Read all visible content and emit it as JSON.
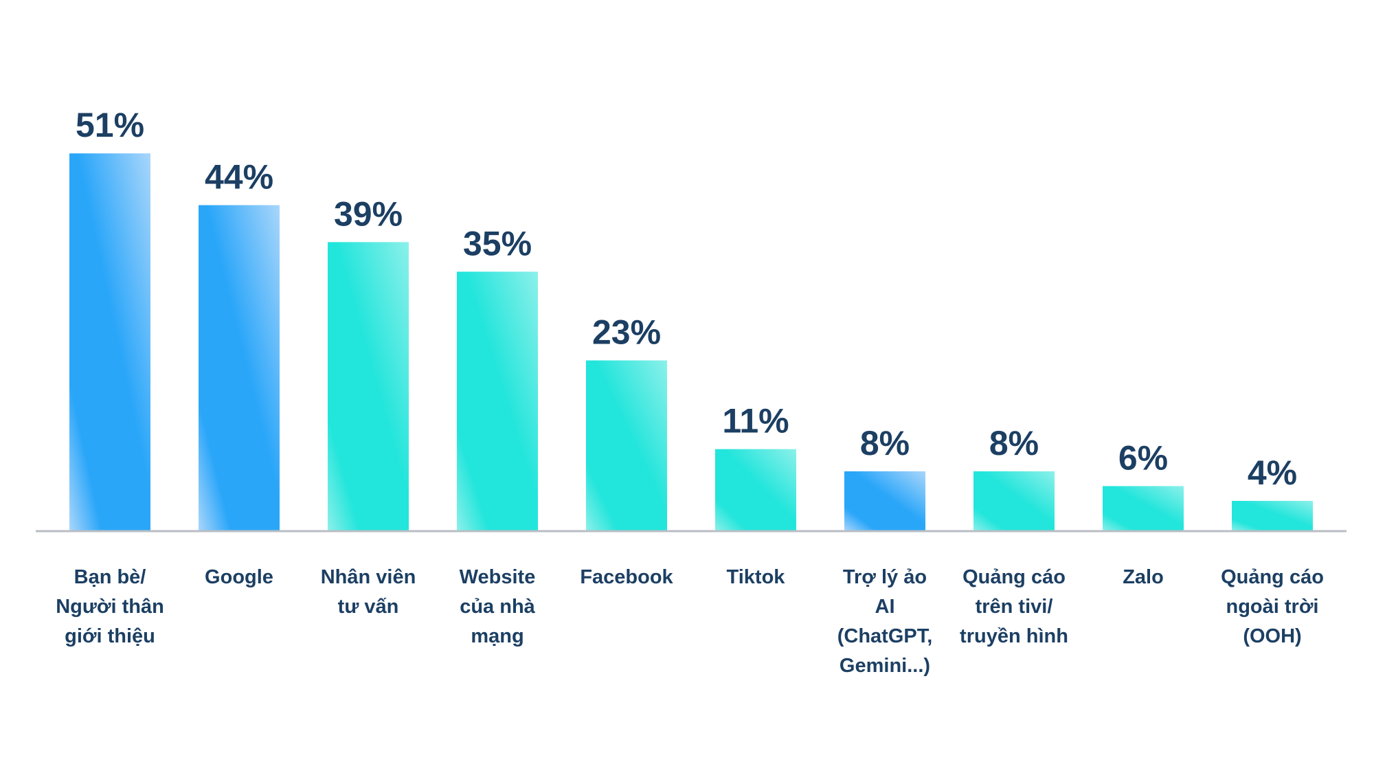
{
  "chart_data": {
    "type": "bar",
    "title": "",
    "xlabel": "",
    "ylabel": "",
    "ylim": [
      0,
      55
    ],
    "grid": false,
    "legend": "none",
    "value_suffix": "%",
    "categories": [
      [
        "Bạn bè/",
        "Người thân",
        "giới thiệu"
      ],
      [
        "Google"
      ],
      [
        "Nhân viên",
        "tư vấn"
      ],
      [
        "Website",
        "của nhà",
        "mạng"
      ],
      [
        "Facebook"
      ],
      [
        "Tiktok"
      ],
      [
        "Trợ lý ảo",
        "AI",
        "(ChatGPT,",
        "Gemini...)"
      ],
      [
        "Quảng cáo",
        "trên tivi/",
        "truyền hình"
      ],
      [
        "Zalo"
      ],
      [
        "Quảng cáo",
        "ngoài trời",
        "(OOH)"
      ]
    ],
    "values": [
      51,
      44,
      39,
      35,
      23,
      11,
      8,
      8,
      6,
      4
    ],
    "bar_styles": [
      "blue",
      "blue",
      "teal",
      "teal",
      "teal",
      "teal",
      "blue",
      "teal",
      "teal",
      "teal"
    ],
    "colors": {
      "blue_light": "#a9d6fb",
      "blue_dark": "#2aa6f9",
      "teal_light": "#8cf0ea",
      "teal_dark": "#22e5db",
      "label": "#1c3f63",
      "axis": "#b9bec4"
    }
  }
}
